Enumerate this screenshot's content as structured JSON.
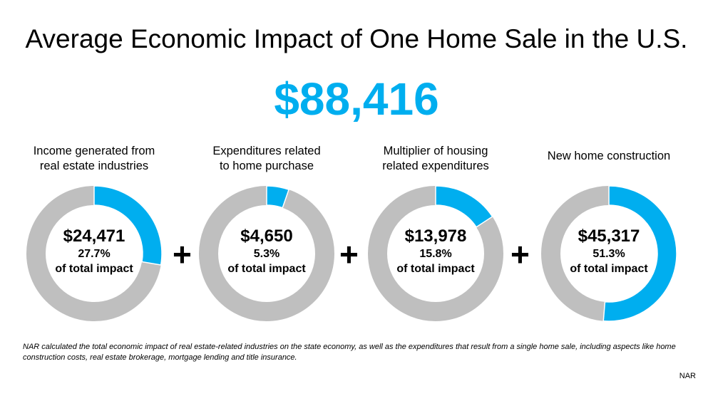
{
  "title": "Average Economic Impact of One Home Sale in the U.S.",
  "total": "$88,416",
  "colors": {
    "accent": "#00AEEF",
    "rest": "#BFBFBF"
  },
  "plus": "+",
  "chart_data": {
    "type": "pie",
    "title": "Average Economic Impact of One Home Sale in the U.S.",
    "total": 88416,
    "series": [
      {
        "name": "Income generated from real estate industries",
        "label_lines": [
          "Income generated from",
          "real estate industries"
        ],
        "amount": "$24,471",
        "value": 24471,
        "percent": 27.7,
        "percent_label": "27.7%",
        "sub": "of total impact"
      },
      {
        "name": "Expenditures related to home purchase",
        "label_lines": [
          "Expenditures related",
          "to home purchase"
        ],
        "amount": "$4,650",
        "value": 4650,
        "percent": 5.3,
        "percent_label": "5.3%",
        "sub": "of total impact"
      },
      {
        "name": "Multiplier of housing related expenditures",
        "label_lines": [
          "Multiplier of housing",
          "related expenditures"
        ],
        "amount": "$13,978",
        "value": 13978,
        "percent": 15.8,
        "percent_label": "15.8%",
        "sub": "of total impact"
      },
      {
        "name": "New home construction",
        "label_lines": [
          "New home construction"
        ],
        "amount": "$45,317",
        "value": 45317,
        "percent": 51.3,
        "percent_label": "51.3%",
        "sub": "of total impact"
      }
    ]
  },
  "footnote": "NAR calculated the total economic impact of real estate-related industries on the state economy, as well as the expenditures that result from a single home sale, including aspects like home construction costs, real estate brokerage, mortgage lending and title insurance.",
  "source": "NAR"
}
